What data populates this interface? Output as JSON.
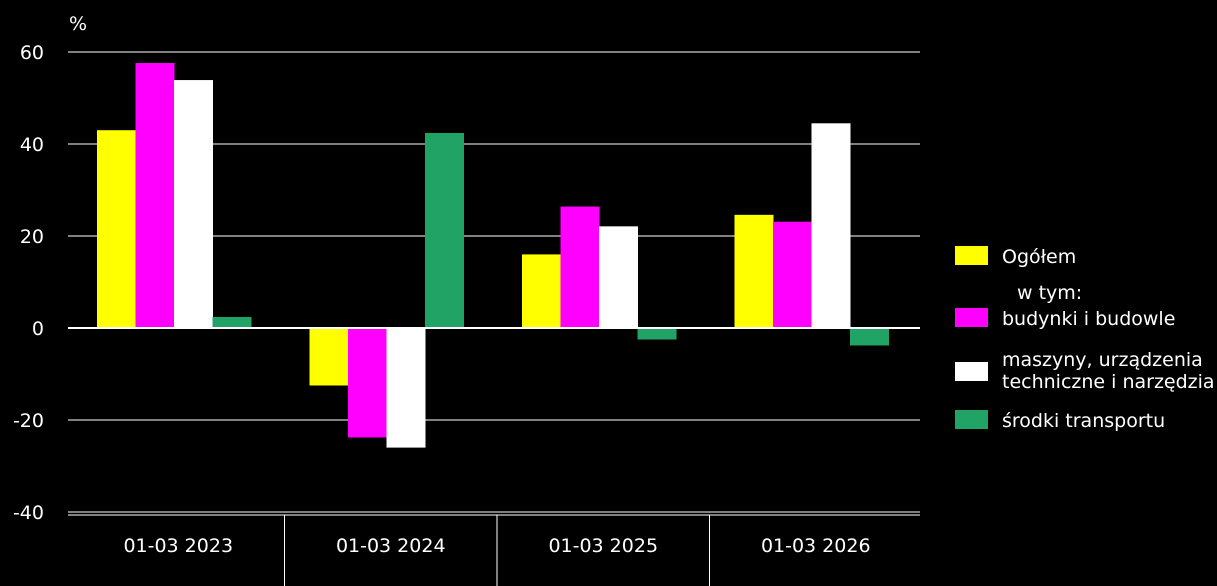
{
  "chart_data": {
    "type": "bar",
    "unit_label": "%",
    "categories": [
      "01-03 2023",
      "01-03 2024",
      "01-03 2025",
      "01-03 2026"
    ],
    "series": [
      {
        "name": "Ogółem",
        "color": "#ffff00",
        "values": [
          43.0,
          -12.5,
          16.0,
          24.6
        ]
      },
      {
        "name": "budynki i budowle",
        "color": "#ff00ff",
        "values": [
          57.6,
          -23.8,
          26.4,
          23.1
        ]
      },
      {
        "name": "maszyny, urządzenia\ntechniczne i narzędzia",
        "color": "#ffffff",
        "values": [
          53.9,
          -26.0,
          22.1,
          44.5
        ]
      },
      {
        "name": "środki transportu",
        "color": "#21a366",
        "values": [
          2.4,
          42.4,
          -2.5,
          -3.8
        ]
      }
    ],
    "ylim": [
      -40,
      60
    ],
    "yticks": [
      -40,
      -20,
      0,
      20,
      40,
      60
    ],
    "grid": true,
    "legend_position": "right",
    "legend_subheading": "w tym:"
  }
}
